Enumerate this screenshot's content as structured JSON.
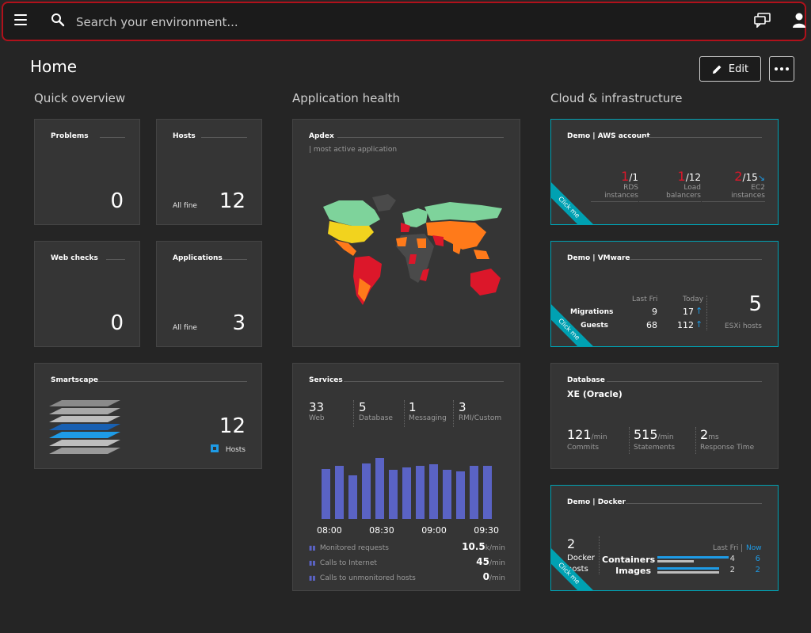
{
  "search": {
    "placeholder": "Search your environment..."
  },
  "page": {
    "title": "Home",
    "edit_label": "Edit"
  },
  "sections": {
    "quick": "Quick overview",
    "apphealth": "Application health",
    "cloud": "Cloud & infrastructure"
  },
  "quick": {
    "problems": {
      "title": "Problems",
      "value": "0"
    },
    "hosts": {
      "title": "Hosts",
      "status": "All fine",
      "value": "12"
    },
    "webchecks": {
      "title": "Web checks",
      "value": "0"
    },
    "applications": {
      "title": "Applications",
      "status": "All fine",
      "value": "3"
    },
    "smartscape": {
      "title": "Smartscape",
      "value": "12",
      "label": "Hosts"
    }
  },
  "apdex": {
    "title": "Apdex",
    "subtitle": "| most active application"
  },
  "services": {
    "title": "Services",
    "stats": [
      {
        "value": "33",
        "label": "Web"
      },
      {
        "value": "5",
        "label": "Database"
      },
      {
        "value": "1",
        "label": "Messaging"
      },
      {
        "value": "3",
        "label": "RMI/Custom"
      }
    ],
    "bars": [
      0.72,
      0.76,
      0.62,
      0.8,
      0.88,
      0.7,
      0.74,
      0.76,
      0.78,
      0.71,
      0.68,
      0.76,
      0.76
    ],
    "times": [
      "08:00",
      "08:30",
      "09:00",
      "09:30"
    ],
    "metrics": [
      {
        "label": "Monitored requests",
        "value": "10.5",
        "unit": "k/min"
      },
      {
        "label": "Calls to Internet",
        "value": "45",
        "unit": "/min"
      },
      {
        "label": "Calls to unmonitored hosts",
        "value": "0",
        "unit": "/min"
      }
    ]
  },
  "aws": {
    "title": "Demo | AWS account",
    "items": [
      {
        "bad": "1",
        "total": "/1",
        "label1": "RDS",
        "label2": "instances"
      },
      {
        "bad": "1",
        "total": "/12",
        "label1": "Load",
        "label2": "balancers"
      },
      {
        "bad": "2",
        "total": "/15",
        "label1": "EC2",
        "label2": "instances"
      }
    ],
    "click": "Click me"
  },
  "vmware": {
    "title": "Demo | VMware",
    "col1": "Last Fri",
    "col2": "Today",
    "rows": [
      {
        "label": "Migrations",
        "last": "9",
        "today": "17"
      },
      {
        "label": "Guests",
        "last": "68",
        "today": "112"
      }
    ],
    "esxi_value": "5",
    "esxi_label": "ESXi hosts",
    "click": "Click me"
  },
  "database": {
    "title": "Database",
    "name": "XE (Oracle)",
    "stats": [
      {
        "value": "121",
        "unit": "/min",
        "label": "Commits"
      },
      {
        "value": "515",
        "unit": "/min",
        "label": "Statements"
      },
      {
        "value": "2",
        "unit": "ms",
        "label": "Response Time"
      }
    ]
  },
  "docker": {
    "title": "Demo | Docker",
    "hosts_value": "2",
    "hosts_label1": "Docker",
    "hosts_label2": "hosts",
    "col1": "Last Fri",
    "col2": "Now",
    "rows": [
      {
        "label": "Containers",
        "last": "4",
        "now": "6"
      },
      {
        "label": "Images",
        "last": "2",
        "now": "2"
      }
    ],
    "click": "Click me"
  },
  "colors": {
    "accent": "#00a1b2",
    "bad": "#dc172a",
    "bar": "#5a63c4",
    "blue": "#1e9be6"
  }
}
